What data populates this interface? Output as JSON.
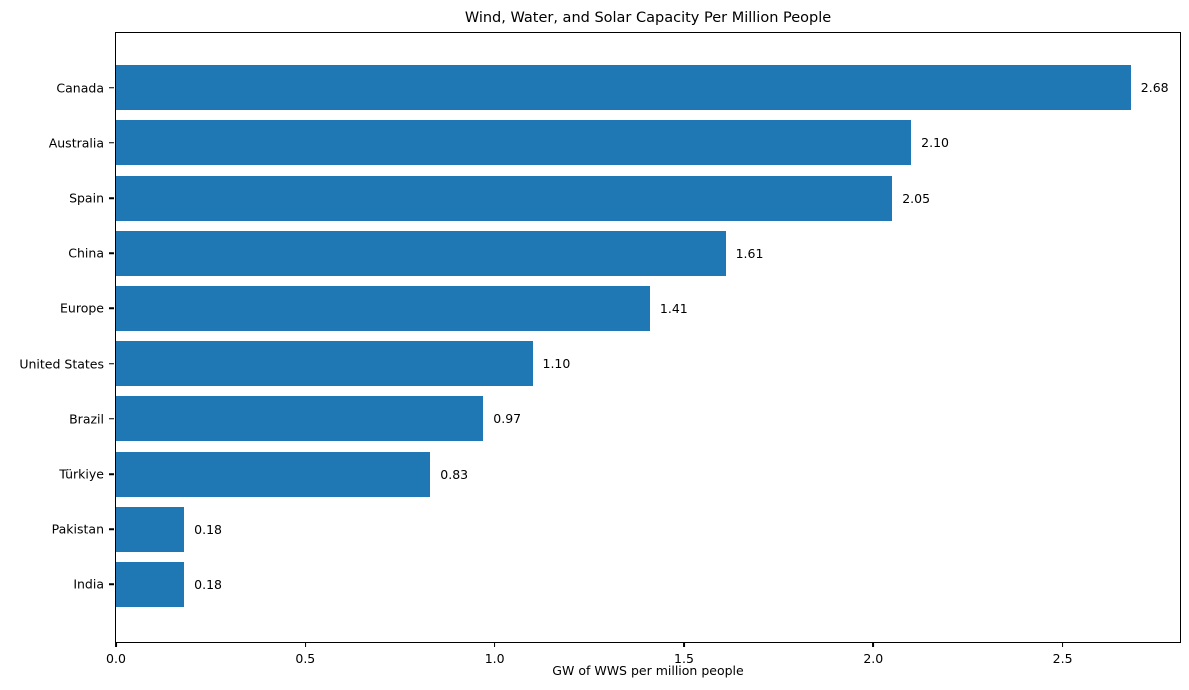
{
  "chart_data": {
    "type": "bar",
    "orientation": "horizontal",
    "title": "Wind, Water, and Solar Capacity Per Million People",
    "xlabel": "GW of WWS per million people",
    "ylabel": "",
    "categories": [
      "Canada",
      "Australia",
      "Spain",
      "China",
      "Europe",
      "United States",
      "Brazil",
      "Türkiye",
      "Pakistan",
      "India"
    ],
    "values": [
      2.68,
      2.1,
      2.05,
      1.61,
      1.41,
      1.1,
      0.97,
      0.83,
      0.18,
      0.18
    ],
    "value_labels": [
      "2.68",
      "2.10",
      "2.05",
      "1.61",
      "1.41",
      "1.10",
      "0.97",
      "0.83",
      "0.18",
      "0.18"
    ],
    "xticks": [
      0.0,
      0.5,
      1.0,
      1.5,
      2.0,
      2.5
    ],
    "xtick_labels": [
      "0.0",
      "0.5",
      "1.0",
      "1.5",
      "2.0",
      "2.5"
    ],
    "xlim": [
      0,
      2.81
    ],
    "grid": false,
    "legend": "none",
    "bar_color": "#1f77b4",
    "axis_color": "#000000",
    "background_color": "#ffffff"
  }
}
